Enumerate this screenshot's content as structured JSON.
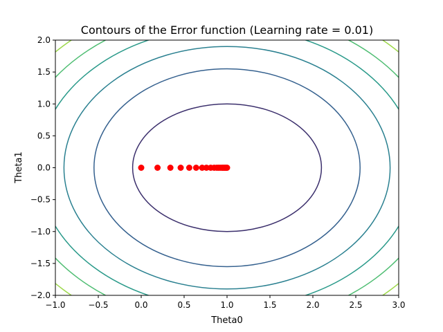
{
  "chart_data": {
    "type": "contour",
    "title": "Contours of the Error function (Learning rate = 0.01)",
    "xlabel": "Theta0",
    "ylabel": "Theta1",
    "xlim": [
      -1.0,
      3.0
    ],
    "ylim": [
      -2.0,
      2.0
    ],
    "xticks": [
      "−1.0",
      "−0.5",
      "0.0",
      "0.5",
      "1.0",
      "1.5",
      "2.0",
      "2.5",
      "3.0"
    ],
    "yticks": [
      "−2.0",
      "−1.5",
      "−1.0",
      "−0.5",
      "0.0",
      "0.5",
      "1.0",
      "1.5",
      "2.0"
    ],
    "grid": false,
    "contours": {
      "center": [
        1.0,
        0.0
      ],
      "levels": [
        {
          "a": 1.1,
          "b": 1.0,
          "color": "#3b2f6c"
        },
        {
          "a": 1.55,
          "b": 1.55,
          "color": "#34608e"
        },
        {
          "a": 1.9,
          "b": 1.9,
          "color": "#2a8090"
        },
        {
          "a": 2.2,
          "b": 2.2,
          "color": "#2a9a8a"
        },
        {
          "a": 2.45,
          "b": 2.45,
          "color": "#4ebd72"
        },
        {
          "a": 2.7,
          "b": 2.7,
          "color": "#9dd84a"
        }
      ]
    },
    "series": [
      {
        "marker_color": "#ff0000",
        "x": [
          0.0,
          0.19,
          0.34,
          0.46,
          0.56,
          0.64,
          0.71,
          0.76,
          0.81,
          0.85,
          0.88,
          0.9,
          0.92,
          0.94,
          0.95,
          0.96,
          0.97,
          0.98,
          0.985,
          0.99,
          0.995,
          1.0
        ],
        "y": [
          0,
          0,
          0,
          0,
          0,
          0,
          0,
          0,
          0,
          0,
          0,
          0,
          0,
          0,
          0,
          0,
          0,
          0,
          0,
          0,
          0,
          0
        ]
      }
    ]
  }
}
